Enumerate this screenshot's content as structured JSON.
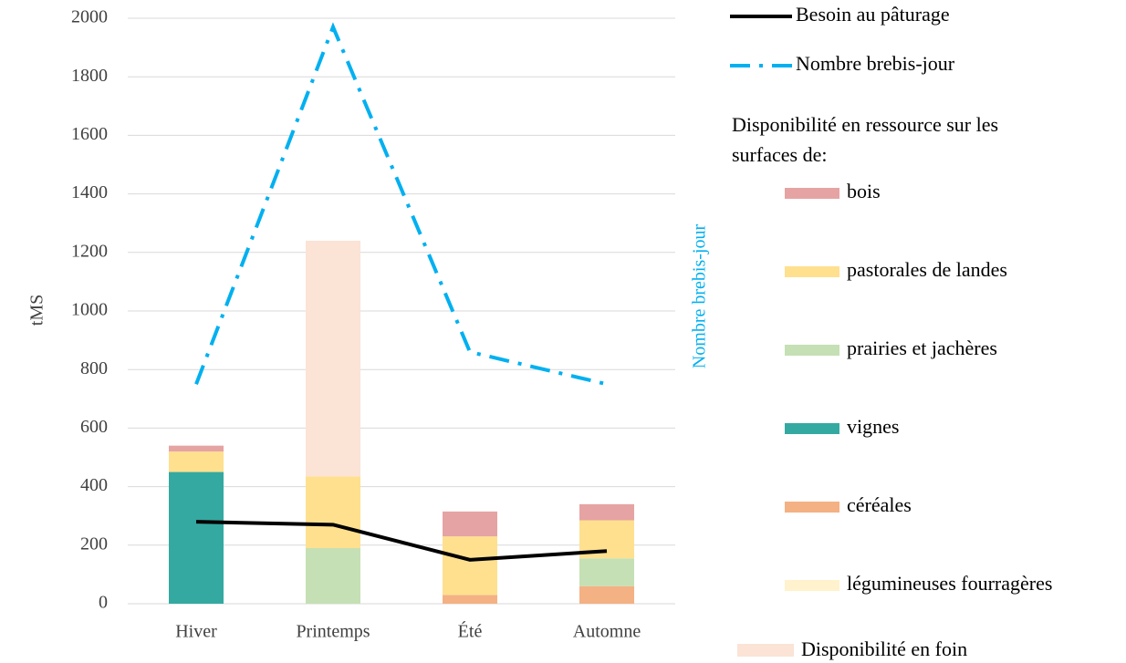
{
  "chart_data": {
    "type": "bar",
    "stacked": true,
    "categories": [
      "Hiver",
      "Printemps",
      "Été",
      "Automne"
    ],
    "y_label": "tMS",
    "y2_label": "Nombre brebis-jour",
    "legend_title": "Disponibilité en ressource sur les surfaces de:",
    "ylim": [
      0,
      2000
    ],
    "yticks": [
      0,
      200,
      400,
      600,
      800,
      1000,
      1200,
      1400,
      1600,
      1800,
      2000
    ],
    "grid": true,
    "series": [
      {
        "name": "céréales",
        "color": "#f4b183",
        "values": [
          0,
          0,
          30,
          60
        ]
      },
      {
        "name": "vignes",
        "color": "#34a9a1",
        "values": [
          450,
          0,
          0,
          0
        ]
      },
      {
        "name": "prairies et jachères",
        "color": "#c5e0b4",
        "values": [
          0,
          190,
          0,
          95
        ]
      },
      {
        "name": "pastorales de landes",
        "color": "#ffe08f",
        "values": [
          70,
          245,
          200,
          130
        ]
      },
      {
        "name": "bois",
        "color": "#e6a3a3",
        "values": [
          20,
          0,
          85,
          55
        ]
      },
      {
        "name": "légumineuses fourragères",
        "color": "#fff2cc",
        "values": [
          0,
          0,
          0,
          0
        ]
      },
      {
        "name": "Disponibilité en foin",
        "color": "#fbe3d6",
        "values": [
          0,
          805,
          0,
          0
        ]
      }
    ],
    "lines": [
      {
        "name": "Besoin au pâturage",
        "color": "#000000",
        "style": "solid",
        "values": [
          280,
          270,
          150,
          180
        ]
      },
      {
        "name": "Nombre brebis-jour",
        "color": "#00b0f0",
        "style": "dashdot",
        "values": [
          750,
          1970,
          860,
          750
        ]
      }
    ]
  }
}
